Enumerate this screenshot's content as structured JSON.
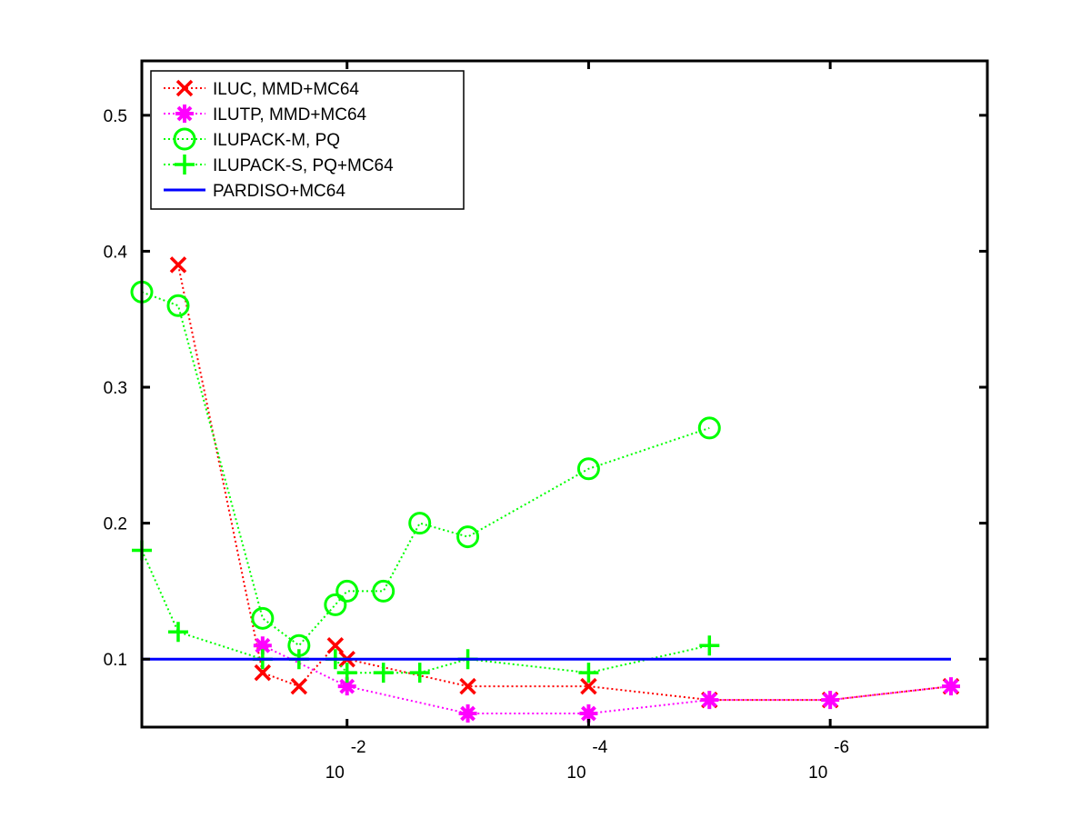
{
  "chart_data": {
    "type": "line",
    "title": "",
    "xlabel": "",
    "ylabel": "",
    "x_scale": "log",
    "x_direction": "decreasing",
    "xlim": [
      0.5,
      5e-08
    ],
    "ylim": [
      0.05,
      0.54
    ],
    "x_ticks": [
      {
        "value": 0.01,
        "base": "10",
        "exp": "-2"
      },
      {
        "value": 0.0001,
        "base": "10",
        "exp": "-4"
      },
      {
        "value": 1e-06,
        "base": "10",
        "exp": "-6"
      }
    ],
    "y_ticks": [
      {
        "value": 0.1,
        "label": "0.1"
      },
      {
        "value": 0.2,
        "label": "0.2"
      },
      {
        "value": 0.3,
        "label": "0.3"
      },
      {
        "value": 0.4,
        "label": "0.4"
      },
      {
        "value": 0.5,
        "label": "0.5"
      }
    ],
    "grid": false,
    "legend_position": "top-left",
    "series": [
      {
        "name": "ILUC, MMD+MC64",
        "color": "#ff0000",
        "marker": "x",
        "line_style": "dotted",
        "points": [
          [
            0.25,
            0.39
          ],
          [
            0.05,
            0.09
          ],
          [
            0.025,
            0.08
          ],
          [
            0.0125,
            0.11
          ],
          [
            0.01,
            0.1
          ],
          [
            0.001,
            0.08
          ],
          [
            0.0001,
            0.08
          ],
          [
            1e-05,
            0.07
          ],
          [
            1e-06,
            0.07
          ],
          [
            1e-07,
            0.08
          ]
        ]
      },
      {
        "name": "ILUTP, MMD+MC64",
        "color": "#ff00ff",
        "marker": "asterisk",
        "line_style": "dotted",
        "points": [
          [
            0.05,
            0.11
          ],
          [
            0.01,
            0.08
          ],
          [
            0.001,
            0.06
          ],
          [
            0.0001,
            0.06
          ],
          [
            1e-05,
            0.07
          ],
          [
            1e-06,
            0.07
          ],
          [
            1e-07,
            0.08
          ]
        ]
      },
      {
        "name": "ILUPACK-M, PQ",
        "color": "#00ff00",
        "marker": "circle",
        "line_style": "dotted",
        "points": [
          [
            0.5,
            0.37
          ],
          [
            0.25,
            0.36
          ],
          [
            0.05,
            0.13
          ],
          [
            0.025,
            0.11
          ],
          [
            0.0125,
            0.14
          ],
          [
            0.01,
            0.15
          ],
          [
            0.005,
            0.15
          ],
          [
            0.0025,
            0.2
          ],
          [
            0.001,
            0.19
          ],
          [
            0.0001,
            0.24
          ],
          [
            1e-05,
            0.27
          ]
        ]
      },
      {
        "name": "ILUPACK-S, PQ+MC64",
        "color": "#00ff00",
        "marker": "plus",
        "line_style": "dotted",
        "points": [
          [
            0.5,
            0.18
          ],
          [
            0.25,
            0.12
          ],
          [
            0.05,
            0.1
          ],
          [
            0.025,
            0.1
          ],
          [
            0.0125,
            0.1
          ],
          [
            0.01,
            0.09
          ],
          [
            0.005,
            0.09
          ],
          [
            0.0025,
            0.09
          ],
          [
            0.001,
            0.1
          ],
          [
            0.0001,
            0.09
          ],
          [
            1e-05,
            0.11
          ]
        ]
      },
      {
        "name": "PARDISO+MC64",
        "color": "#0000ff",
        "marker": "none",
        "line_style": "solid",
        "points": [
          [
            0.5,
            0.1
          ],
          [
            1e-07,
            0.1
          ]
        ]
      }
    ]
  }
}
